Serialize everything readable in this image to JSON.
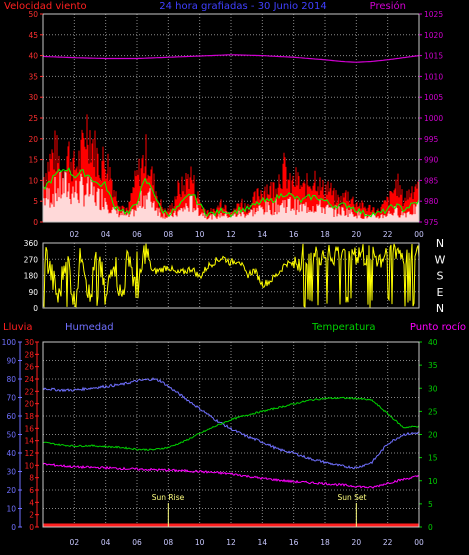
{
  "chart_data": [
    {
      "type": "area",
      "title": "24 hora grafiadas - 30 Junio 2014",
      "label_left": "Velocidad viento",
      "label_right": "Presión",
      "colors": {
        "title": "#4040ff",
        "label_left": "#ff2020",
        "label_right": "#d000d0",
        "speed": "#ff0000",
        "gust_line": "#00ff00",
        "white": "#ffffff",
        "pressure": "#d000d0"
      },
      "x_tick_labels": [
        "02",
        "04",
        "06",
        "08",
        "10",
        "12",
        "14",
        "16",
        "18",
        "20",
        "22",
        "00"
      ],
      "ylim": [
        0,
        50
      ],
      "y_ticks": [
        0,
        5,
        10,
        15,
        20,
        25,
        30,
        35,
        40,
        45,
        50
      ],
      "y2lim": [
        975,
        1025
      ],
      "y2_ticks": [
        975,
        980,
        985,
        990,
        995,
        1000,
        1005,
        1010,
        1015,
        1020,
        1025
      ],
      "series": [
        {
          "key": "gusts",
          "points": [
            [
              0,
              12
            ],
            [
              0.4,
              17
            ],
            [
              0.8,
              20
            ],
            [
              1.2,
              14
            ],
            [
              1.6,
              20
            ],
            [
              2,
              15
            ],
            [
              2.4,
              18
            ],
            [
              2.8,
              27
            ],
            [
              3.2,
              22
            ],
            [
              3.6,
              16
            ],
            [
              4,
              18
            ],
            [
              4.3,
              14
            ],
            [
              4.6,
              8
            ],
            [
              5,
              5
            ],
            [
              5.4,
              3
            ],
            [
              5.8,
              10
            ],
            [
              6.2,
              15
            ],
            [
              6.6,
              19
            ],
            [
              7,
              12
            ],
            [
              7.4,
              6
            ],
            [
              7.8,
              3
            ],
            [
              8.2,
              4
            ],
            [
              8.6,
              9
            ],
            [
              9,
              10
            ],
            [
              9.4,
              14
            ],
            [
              9.8,
              8
            ],
            [
              10.2,
              4
            ],
            [
              10.6,
              3
            ],
            [
              11,
              3
            ],
            [
              11.4,
              6
            ],
            [
              11.8,
              4
            ],
            [
              12.2,
              3
            ],
            [
              12.6,
              6
            ],
            [
              13,
              4
            ],
            [
              13.4,
              6
            ],
            [
              13.8,
              8
            ],
            [
              14.2,
              10
            ],
            [
              14.6,
              9
            ],
            [
              15,
              12
            ],
            [
              15.4,
              15
            ],
            [
              15.8,
              10
            ],
            [
              16.2,
              12
            ],
            [
              16.6,
              9
            ],
            [
              17,
              11
            ],
            [
              17.4,
              13
            ],
            [
              17.8,
              9
            ],
            [
              18.2,
              10
            ],
            [
              18.6,
              7
            ],
            [
              19,
              6
            ],
            [
              19.4,
              8
            ],
            [
              19.8,
              6
            ],
            [
              20.2,
              5
            ],
            [
              20.6,
              4
            ],
            [
              21,
              4
            ],
            [
              21.4,
              3
            ],
            [
              21.8,
              5
            ],
            [
              22.2,
              7
            ],
            [
              22.6,
              11
            ],
            [
              23,
              6
            ],
            [
              23.5,
              9
            ],
            [
              24,
              12
            ]
          ]
        },
        {
          "key": "average",
          "points": [
            [
              0,
              8
            ],
            [
              0.5,
              10
            ],
            [
              1,
              12
            ],
            [
              1.5,
              13
            ],
            [
              2,
              11
            ],
            [
              2.5,
              12
            ],
            [
              3,
              11
            ],
            [
              3.5,
              9
            ],
            [
              4,
              9
            ],
            [
              4.5,
              4
            ],
            [
              5,
              3
            ],
            [
              5.5,
              2
            ],
            [
              6,
              5
            ],
            [
              6.5,
              10
            ],
            [
              7,
              8
            ],
            [
              7.5,
              3
            ],
            [
              8,
              2
            ],
            [
              8.5,
              3
            ],
            [
              9,
              5
            ],
            [
              9.5,
              7
            ],
            [
              10,
              4
            ],
            [
              10.5,
              2
            ],
            [
              11,
              2
            ],
            [
              11.5,
              3
            ],
            [
              12,
              2
            ],
            [
              12.5,
              3
            ],
            [
              13,
              3
            ],
            [
              13.5,
              4
            ],
            [
              14,
              5
            ],
            [
              14.5,
              5
            ],
            [
              15,
              6
            ],
            [
              15.5,
              7
            ],
            [
              16,
              6
            ],
            [
              16.5,
              5
            ],
            [
              17,
              6
            ],
            [
              17.5,
              6
            ],
            [
              18,
              5
            ],
            [
              18.5,
              4
            ],
            [
              19,
              4
            ],
            [
              19.5,
              4
            ],
            [
              20,
              3
            ],
            [
              20.5,
              2
            ],
            [
              21,
              2
            ],
            [
              21.5,
              2
            ],
            [
              22,
              3
            ],
            [
              22.5,
              4
            ],
            [
              23,
              3
            ],
            [
              23.5,
              4
            ],
            [
              24,
              5
            ]
          ]
        },
        {
          "key": "pressure",
          "points": [
            [
              0,
              1014.8
            ],
            [
              2,
              1014.5
            ],
            [
              4,
              1014.3
            ],
            [
              6,
              1014.3
            ],
            [
              8,
              1014.6
            ],
            [
              10,
              1014.9
            ],
            [
              12,
              1015.2
            ],
            [
              14,
              1015
            ],
            [
              16,
              1014.6
            ],
            [
              18,
              1014
            ],
            [
              19,
              1013.6
            ],
            [
              20,
              1013.4
            ],
            [
              21,
              1013.6
            ],
            [
              22,
              1014
            ],
            [
              23,
              1014.5
            ],
            [
              24,
              1015
            ]
          ]
        }
      ]
    },
    {
      "type": "line",
      "title": "",
      "ylim": [
        0,
        360
      ],
      "y_ticks": [
        0,
        90,
        180,
        270,
        360
      ],
      "compass_labels": [
        "N",
        "W",
        "S",
        "E",
        "N"
      ],
      "colors": {
        "direction": "#ffff00",
        "compass": "#ffffff"
      },
      "series": [
        {
          "key": "direction",
          "points": [
            [
              0,
              350
            ],
            [
              1,
              40
            ],
            [
              1.5,
              330
            ],
            [
              2,
              20
            ],
            [
              2.5,
              340
            ],
            [
              3,
              30
            ],
            [
              3.5,
              350
            ],
            [
              4,
              20
            ],
            [
              4.5,
              300
            ],
            [
              5,
              40
            ],
            [
              5.5,
              320
            ],
            [
              6,
              20
            ],
            [
              6.5,
              330
            ],
            [
              7,
              200
            ],
            [
              7.5,
              210
            ],
            [
              8,
              230
            ],
            [
              8.5,
              190
            ],
            [
              9,
              200
            ],
            [
              9.5,
              220
            ],
            [
              10,
              170
            ],
            [
              10.5,
              230
            ],
            [
              11,
              260
            ],
            [
              11.5,
              280
            ],
            [
              12,
              250
            ],
            [
              12.5,
              270
            ],
            [
              13,
              180
            ],
            [
              13.5,
              210
            ],
            [
              14,
              130
            ],
            [
              14.5,
              150
            ],
            [
              15,
              190
            ],
            [
              15.5,
              250
            ],
            [
              16,
              240
            ],
            [
              16.5,
              300
            ],
            [
              17,
              330
            ],
            [
              17.5,
              310
            ],
            [
              18,
              320
            ],
            [
              18.5,
              300
            ],
            [
              19,
              330
            ],
            [
              19.5,
              340
            ],
            [
              20,
              310
            ],
            [
              20.5,
              300
            ],
            [
              21,
              320
            ],
            [
              21.5,
              280
            ],
            [
              22,
              330
            ],
            [
              22.5,
              340
            ],
            [
              23,
              300
            ],
            [
              23.5,
              320
            ],
            [
              24,
              330
            ]
          ]
        }
      ]
    },
    {
      "type": "line",
      "title": "",
      "label_lluvia": "Lluvia",
      "label_humedad": "Humedad",
      "label_temperatura": "Temperatura",
      "label_punto_rocio": "Punto rocío",
      "annotation_sunrise": "Sun Rise",
      "annotation_sunset": "Sun Set",
      "colors": {
        "lluvia": "#ff2020",
        "humedad": "#7070ff",
        "temperatura": "#00d000",
        "punto_rocio": "#ff00ff",
        "annotation": "#ffff80"
      },
      "x_tick_labels": [
        "02",
        "04",
        "06",
        "08",
        "10",
        "12",
        "14",
        "16",
        "18",
        "20",
        "22",
        "00"
      ],
      "humidity_axis": [
        0,
        10,
        20,
        30,
        40,
        50,
        60,
        70,
        80,
        90,
        100
      ],
      "rain_axis": [
        0,
        2,
        4,
        6,
        8,
        10,
        12,
        14,
        16,
        18,
        20,
        22,
        24,
        26,
        28,
        30
      ],
      "temp_axis": [
        0,
        5,
        10,
        15,
        20,
        25,
        30,
        35,
        40
      ],
      "temp_lim": [
        0,
        40
      ],
      "humidity_lim": [
        0,
        100
      ],
      "sunrise_hour": 8.0,
      "sunset_hour": 20.0,
      "series": [
        {
          "key": "humedad",
          "points": [
            [
              0,
              75
            ],
            [
              1,
              74
            ],
            [
              2,
              74
            ],
            [
              3,
              75
            ],
            [
              4,
              76
            ],
            [
              5,
              77
            ],
            [
              6,
              79
            ],
            [
              7,
              80
            ],
            [
              7.5,
              79
            ],
            [
              8,
              76
            ],
            [
              9,
              70
            ],
            [
              10,
              64
            ],
            [
              11,
              58
            ],
            [
              12,
              53
            ],
            [
              13,
              49
            ],
            [
              14,
              46
            ],
            [
              15,
              42
            ],
            [
              16,
              40
            ],
            [
              17,
              37
            ],
            [
              18,
              35
            ],
            [
              19,
              33
            ],
            [
              20,
              32
            ],
            [
              21,
              35
            ],
            [
              22,
              45
            ],
            [
              23,
              50
            ],
            [
              24,
              51
            ]
          ]
        },
        {
          "key": "temperatura",
          "points": [
            [
              0,
              18.3
            ],
            [
              1,
              17.8
            ],
            [
              2,
              17.5
            ],
            [
              3,
              17.6
            ],
            [
              4,
              17.4
            ],
            [
              5,
              17.2
            ],
            [
              6,
              16.8
            ],
            [
              7,
              16.7
            ],
            [
              8,
              17.2
            ],
            [
              9,
              18.5
            ],
            [
              10,
              20.2
            ],
            [
              11,
              21.8
            ],
            [
              12,
              23.2
            ],
            [
              13,
              24.2
            ],
            [
              14,
              25
            ],
            [
              15,
              25.8
            ],
            [
              16,
              26.6
            ],
            [
              17,
              27.4
            ],
            [
              18,
              27.8
            ],
            [
              19,
              27.9
            ],
            [
              20,
              27.8
            ],
            [
              21,
              27.4
            ],
            [
              22,
              24.5
            ],
            [
              23,
              21.5
            ],
            [
              24,
              21.8
            ]
          ]
        },
        {
          "key": "punto_rocio",
          "points": [
            [
              0,
              13.6
            ],
            [
              2,
              13
            ],
            [
              4,
              12.8
            ],
            [
              6,
              12.5
            ],
            [
              8,
              12.3
            ],
            [
              10,
              12
            ],
            [
              12,
              11.5
            ],
            [
              14,
              10.5
            ],
            [
              16,
              9.8
            ],
            [
              18,
              9.4
            ],
            [
              20,
              8.8
            ],
            [
              21,
              8.5
            ],
            [
              22,
              9.5
            ],
            [
              23,
              10.3
            ],
            [
              24,
              11
            ]
          ]
        }
      ]
    }
  ]
}
